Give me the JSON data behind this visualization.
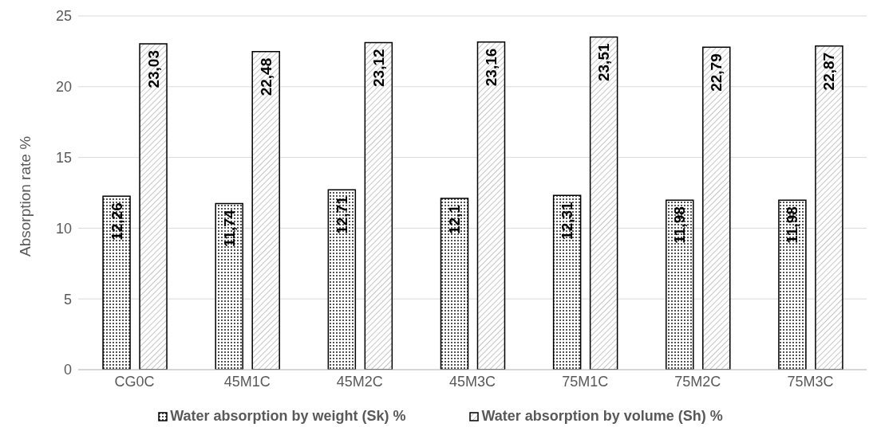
{
  "chart_data": {
    "type": "bar",
    "ylabel": "Absorption rate %",
    "categories": [
      "CG0C",
      "45M1C",
      "45M2C",
      "45M3C",
      "75M1C",
      "75M2C",
      "75M3C"
    ],
    "series": [
      {
        "name": "Water absorption by weight (Sk) %",
        "color": "#000000",
        "values": [
          12.26,
          11.74,
          12.71,
          12.1,
          12.31,
          11.98,
          11.98
        ],
        "value_labels": [
          "12,26",
          "11,74",
          "12,71",
          "12,1",
          "12,31",
          "11,98",
          "11,98"
        ]
      },
      {
        "name": "Water absorption by volume (Sh) %",
        "color": "#000000",
        "values": [
          23.03,
          22.48,
          23.12,
          23.16,
          23.51,
          22.79,
          22.87
        ],
        "value_labels": [
          "23,03",
          "22,48",
          "23,12",
          "23,16",
          "23,51",
          "22,79",
          "22,87"
        ]
      }
    ],
    "ylim": [
      0,
      25
    ],
    "yticks": [
      0,
      5,
      10,
      15,
      20,
      25
    ],
    "grid": "y",
    "legend": "bottom"
  }
}
